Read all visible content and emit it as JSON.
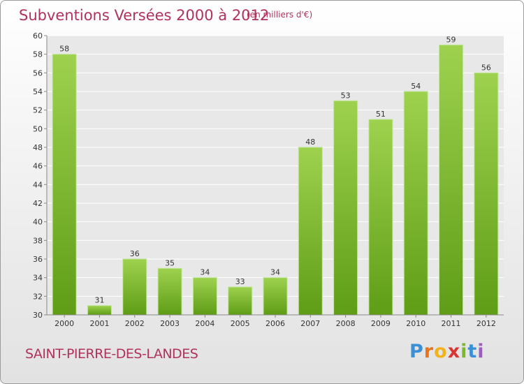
{
  "title": "Subventions Versées 2000 à 2012",
  "subtitle": "(en milliers d'€)",
  "commune": "SAINT-PIERRE-DES-LANDES",
  "brand": {
    "letters": [
      "P",
      "r",
      "o",
      "x",
      "i",
      "t",
      "i"
    ],
    "colors": [
      "#3a8fd6",
      "#e8731c",
      "#f2b21a",
      "#d93535",
      "#7ab82c",
      "#3a8fd6",
      "#9c5cc0"
    ]
  },
  "colors": {
    "text_accent": "#b0325d",
    "bar_light": "#9ed24e",
    "bar_dark": "#5f9d16",
    "plot_bg": "#e8e8e8",
    "grid": "#ffffff"
  },
  "chart_data": {
    "type": "bar",
    "categories": [
      "2000",
      "2001",
      "2002",
      "2003",
      "2004",
      "2005",
      "2006",
      "2007",
      "2008",
      "2009",
      "2010",
      "2011",
      "2012"
    ],
    "values": [
      58,
      31,
      36,
      35,
      34,
      33,
      34,
      48,
      53,
      51,
      54,
      59,
      56
    ],
    "ylim": [
      30,
      60
    ],
    "yticks": [
      30,
      32,
      34,
      36,
      38,
      40,
      42,
      44,
      46,
      48,
      50,
      52,
      54,
      56,
      58,
      60
    ],
    "grid": true
  }
}
